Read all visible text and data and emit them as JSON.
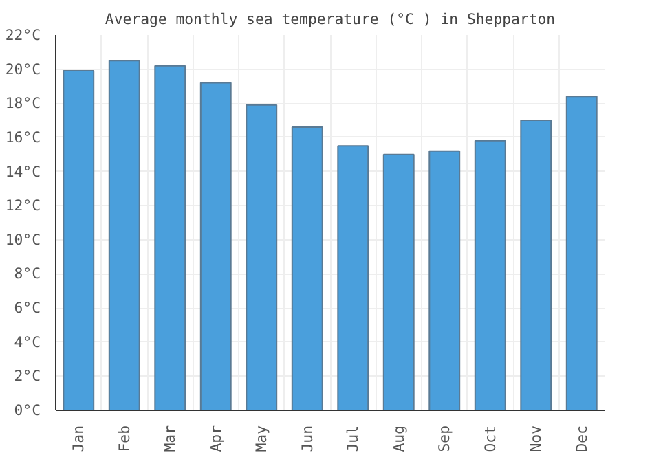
{
  "chart_data": {
    "type": "bar",
    "title": "Average monthly sea temperature (°C ) in Shepparton",
    "categories": [
      "Jan",
      "Feb",
      "Mar",
      "Apr",
      "May",
      "Jun",
      "Jul",
      "Aug",
      "Sep",
      "Oct",
      "Nov",
      "Dec"
    ],
    "values": [
      19.9,
      20.5,
      20.2,
      19.2,
      17.9,
      16.6,
      15.5,
      15.0,
      15.2,
      15.8,
      17.0,
      18.4
    ],
    "color": "#4a9fdc",
    "ylim": [
      0,
      22
    ],
    "yticks": [
      {
        "value": 0,
        "label": "0°C"
      },
      {
        "value": 2,
        "label": "2°C"
      },
      {
        "value": 4,
        "label": "4°C"
      },
      {
        "value": 6,
        "label": "6°C"
      },
      {
        "value": 8,
        "label": "8°C"
      },
      {
        "value": 10,
        "label": "10°C"
      },
      {
        "value": 12,
        "label": "12°C"
      },
      {
        "value": 14,
        "label": "14°C"
      },
      {
        "value": 16,
        "label": "16°C"
      },
      {
        "value": 18,
        "label": "18°C"
      },
      {
        "value": 20,
        "label": "20°C"
      },
      {
        "value": 22,
        "label": "22°C"
      }
    ],
    "grid": true
  }
}
